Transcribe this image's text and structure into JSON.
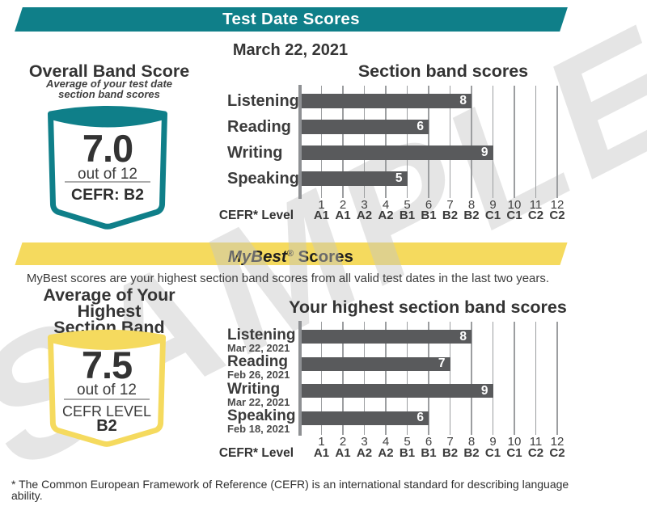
{
  "watermark": "SAMPLE",
  "colors": {
    "teal": "#0F7F89",
    "yellow": "#F5DA5E",
    "bar": "#595A5C",
    "grid": "#9C9EA0",
    "axis": "#8E9093",
    "watermark": "rgba(198,198,198,0.45)"
  },
  "test_date_section": {
    "banner_title": "Test Date Scores",
    "date": "March 22, 2021",
    "overall": {
      "title": "Overall Band Score",
      "subtitle_line1": "Average of your test date",
      "subtitle_line2": "section band scores",
      "score": "7.0",
      "out_of": "out of 12",
      "cefr": "CEFR: B2"
    }
  },
  "mybest_section": {
    "banner_title_italic": "MyBest",
    "banner_title_reg_mark": "®",
    "banner_title_rest": " Scores",
    "description": "MyBest scores are your highest section band scores from all valid test dates in the last two years.",
    "average": {
      "title_line1": "Average of Your Highest",
      "title_line2": "Section Band Scores",
      "score": "7.5",
      "out_of": "out of 12",
      "cefr_label": "CEFR LEVEL",
      "cefr_value": "B2"
    }
  },
  "footer_note": {
    "line1": "* The Common European Framework of Reference (CEFR) is an international standard for describing language",
    "line2": "ability."
  },
  "chart_data": [
    {
      "type": "bar",
      "orientation": "horizontal",
      "title": "Section band scores",
      "categories": [
        "Listening",
        "Reading",
        "Writing",
        "Speaking"
      ],
      "values": [
        8,
        6,
        9,
        5
      ],
      "value_labels": [
        "8",
        "6",
        "9",
        "5"
      ],
      "xlabel": "CEFR* Level",
      "xlim": [
        0,
        12
      ],
      "x_ticks": [
        "1",
        "2",
        "3",
        "4",
        "5",
        "6",
        "7",
        "8",
        "9",
        "10",
        "11",
        "12"
      ],
      "x_tick_cefr": [
        "A1",
        "A1",
        "A2",
        "A2",
        "B1",
        "B1",
        "B2",
        "B2",
        "C1",
        "C1",
        "C2",
        "C2"
      ],
      "grid": true,
      "legend": false
    },
    {
      "type": "bar",
      "orientation": "horizontal",
      "title": "Your highest section band scores",
      "categories": [
        "Listening",
        "Reading",
        "Writing",
        "Speaking"
      ],
      "category_dates": [
        "Mar 22, 2021",
        "Feb 26, 2021",
        "Mar 22, 2021",
        "Feb 18, 2021"
      ],
      "values": [
        8,
        7,
        9,
        6
      ],
      "value_labels": [
        "8",
        "7",
        "9",
        "6"
      ],
      "xlabel": "CEFR* Level",
      "xlim": [
        0,
        12
      ],
      "x_ticks": [
        "1",
        "2",
        "3",
        "4",
        "5",
        "6",
        "7",
        "8",
        "9",
        "10",
        "11",
        "12"
      ],
      "x_tick_cefr": [
        "A1",
        "A1",
        "A2",
        "A2",
        "B1",
        "B1",
        "B2",
        "B2",
        "C1",
        "C1",
        "C2",
        "C2"
      ],
      "grid": true,
      "legend": false
    }
  ]
}
